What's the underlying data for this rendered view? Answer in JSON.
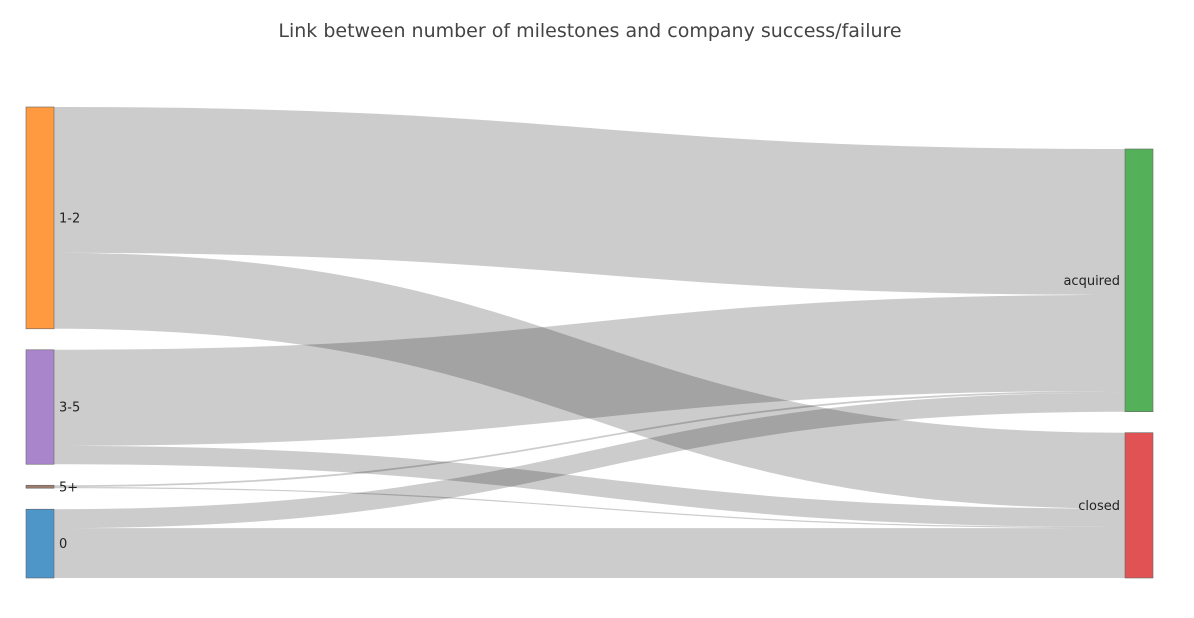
{
  "chart_data": {
    "type": "sankey",
    "title": "Link between number of milestones and company success/failure",
    "nodes": [
      {
        "id": "1-2",
        "label": "1-2",
        "color": "#ff9a40"
      },
      {
        "id": "3-5",
        "label": "3-5",
        "color": "#a985cb"
      },
      {
        "id": "5+",
        "label": "5+",
        "color": "#9b7c6e"
      },
      {
        "id": "0",
        "label": "0",
        "color": "#4e95c8"
      },
      {
        "id": "acquired",
        "label": "acquired",
        "color": "#55b05a"
      },
      {
        "id": "closed",
        "label": "closed",
        "color": "#e05253"
      }
    ],
    "links": [
      {
        "source": "1-2",
        "target": "acquired",
        "value": 246
      },
      {
        "source": "1-2",
        "target": "closed",
        "value": 128
      },
      {
        "source": "3-5",
        "target": "acquired",
        "value": 162
      },
      {
        "source": "3-5",
        "target": "closed",
        "value": 31
      },
      {
        "source": "5+",
        "target": "acquired",
        "value": 3
      },
      {
        "source": "5+",
        "target": "closed",
        "value": 2
      },
      {
        "source": "0",
        "target": "acquired",
        "value": 32
      },
      {
        "source": "0",
        "target": "closed",
        "value": 84
      }
    ],
    "link_color": "rgba(0,0,0,0.2)"
  }
}
